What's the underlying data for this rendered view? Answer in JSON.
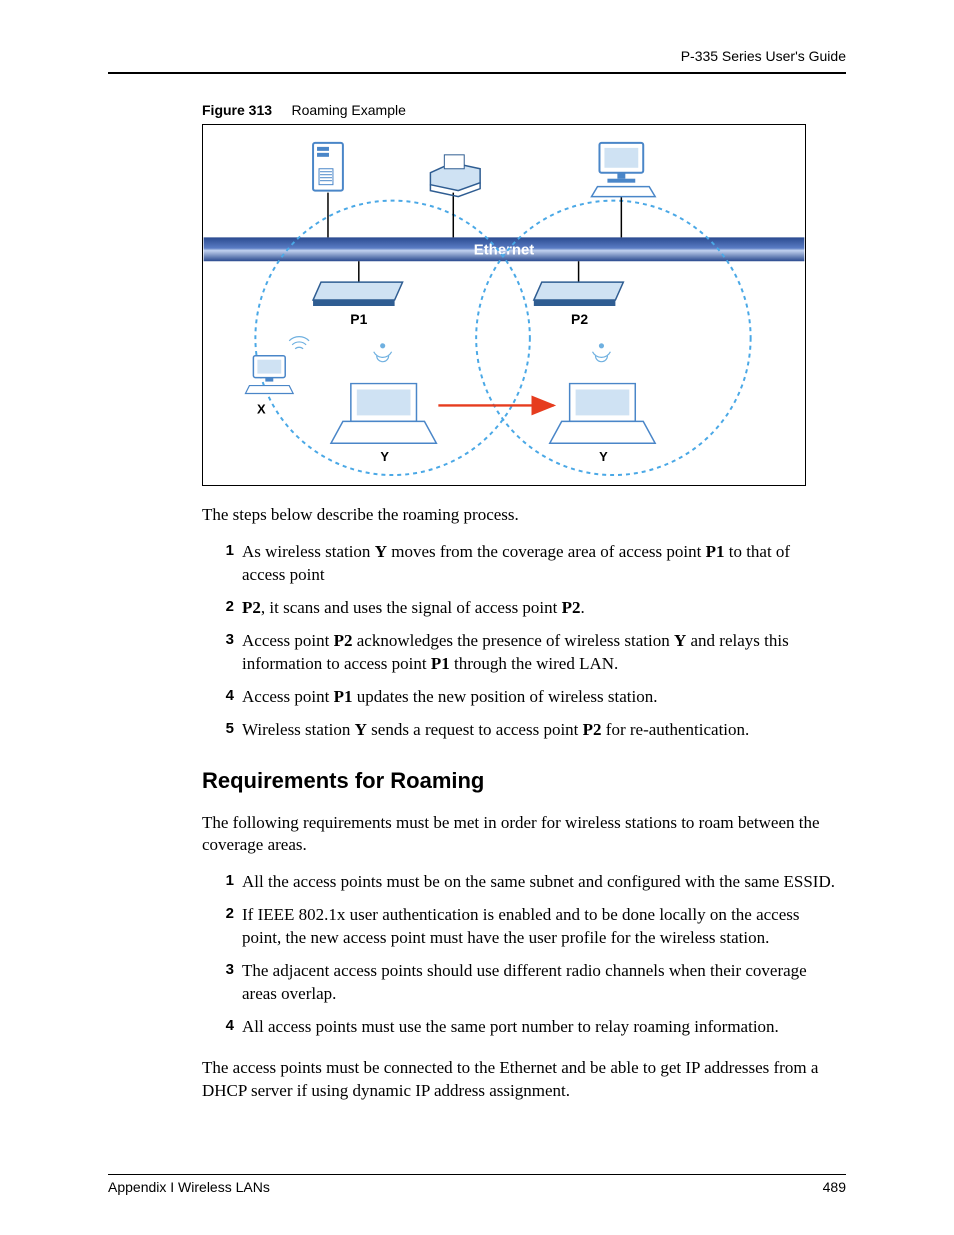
{
  "header": {
    "guide_title": "P-335 Series User's Guide"
  },
  "figure": {
    "label": "Figure 313",
    "title": "Roaming Example",
    "ethernet_label": "Ethernet",
    "ap_labels": {
      "p1": "P1",
      "p2": "P2"
    },
    "station_labels": {
      "x": "X",
      "y_left": "Y",
      "y_right": "Y"
    },
    "colors": {
      "coverage_circle": "#4aa8e6",
      "ethernet_bar_dark": "#2a4a8f",
      "ethernet_bar_mid": "#5a7cc4",
      "ethernet_bar_light": "#c2d2ef",
      "device_blue": "#4a86c8",
      "device_dark": "#2f5d92",
      "device_light": "#cfe2f3",
      "wifi_waves": "#6fb0e0",
      "arrow_red": "#e63c1e",
      "border": "#000000"
    }
  },
  "intro_roaming": "The steps below describe the roaming process.",
  "roaming_steps": [
    {
      "num": "1",
      "segments": [
        "As wireless station ",
        {
          "b": "Y"
        },
        " moves from the coverage area of access point ",
        {
          "b": "P1"
        },
        " to that of access point"
      ]
    },
    {
      "num": "2",
      "segments": [
        {
          "b": "P2"
        },
        ", it scans and uses the signal of access point ",
        {
          "b": "P2"
        },
        "."
      ]
    },
    {
      "num": "3",
      "segments": [
        "Access point ",
        {
          "b": "P2"
        },
        " acknowledges the presence of wireless station ",
        {
          "b": "Y"
        },
        " and relays this information to access point ",
        {
          "b": "P1"
        },
        " through the wired LAN."
      ]
    },
    {
      "num": "4",
      "segments": [
        "Access point ",
        {
          "b": "P1"
        },
        " updates the new position of wireless station."
      ]
    },
    {
      "num": "5",
      "segments": [
        "Wireless station ",
        {
          "b": "Y"
        },
        " sends a request to access point ",
        {
          "b": "P2"
        },
        " for re-authentication."
      ]
    }
  ],
  "section_heading": "Requirements for Roaming",
  "intro_requirements": "The following requirements must be met in order for wireless stations to roam between the coverage areas.",
  "requirement_steps": [
    {
      "num": "1",
      "segments": [
        "All the access points must be on the same subnet and configured with the same ESSID."
      ]
    },
    {
      "num": "2",
      "segments": [
        "If IEEE 802.1x user authentication is enabled and to be done locally on the access point, the new access point must have the user profile for the wireless station."
      ]
    },
    {
      "num": "3",
      "segments": [
        "The adjacent access points should use different radio channels when their coverage areas overlap."
      ]
    },
    {
      "num": "4",
      "segments": [
        "All access points must use the same port number to relay roaming information."
      ]
    }
  ],
  "closing_para": "The access points must be connected to the Ethernet and be able to get IP addresses from a DHCP server if using dynamic IP address assignment.",
  "footer": {
    "appendix": "Appendix I Wireless LANs",
    "page_number": "489"
  }
}
